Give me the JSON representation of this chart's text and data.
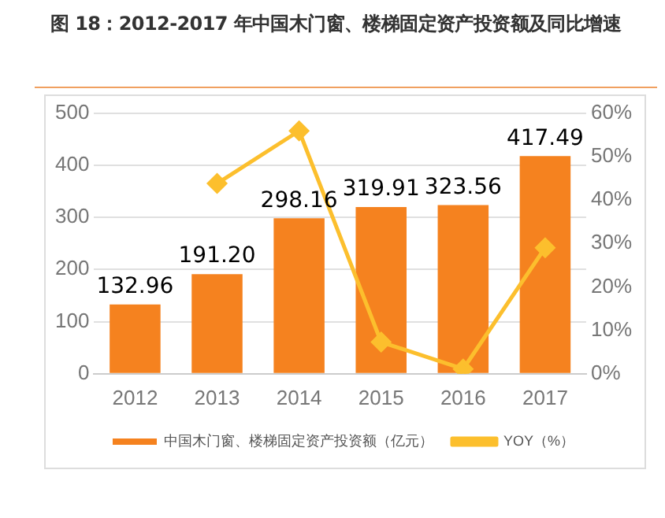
{
  "chart_data": {
    "type": "bar",
    "title": "图 18：2012-2017 年中国木门窗、楼梯固定资产投资额及同比增速",
    "categories": [
      "2012",
      "2013",
      "2014",
      "2015",
      "2016",
      "2017"
    ],
    "series": [
      {
        "name": "中国木门窗、楼梯固定资产投资额（亿元）",
        "color": "#f5821f",
        "values": [
          132.96,
          191.2,
          298.16,
          319.91,
          323.56,
          417.49
        ],
        "value_labels": [
          "132.96",
          "191.20",
          "298.16",
          "319.91",
          "323.56",
          "417.49"
        ]
      },
      {
        "name": "YOY（%）",
        "type": "line",
        "axis": "y2",
        "color": "#fcbf2d",
        "marker": "diamond",
        "values": [
          null,
          43.8,
          55.9,
          7.3,
          1.1,
          29.0
        ]
      }
    ],
    "ylim": [
      0,
      500
    ],
    "yticks": [
      0,
      100,
      200,
      300,
      400,
      500
    ],
    "y2lim": [
      0,
      60
    ],
    "y2ticks": [
      {
        "value": 0,
        "label": "0%"
      },
      {
        "value": 10,
        "label": "10%"
      },
      {
        "value": 20,
        "label": "20%"
      },
      {
        "value": 30,
        "label": "30%"
      },
      {
        "value": 40,
        "label": "40%"
      },
      {
        "value": 50,
        "label": "50%"
      },
      {
        "value": 60,
        "label": "60%"
      }
    ],
    "grid": "y",
    "legend": "bottom"
  }
}
